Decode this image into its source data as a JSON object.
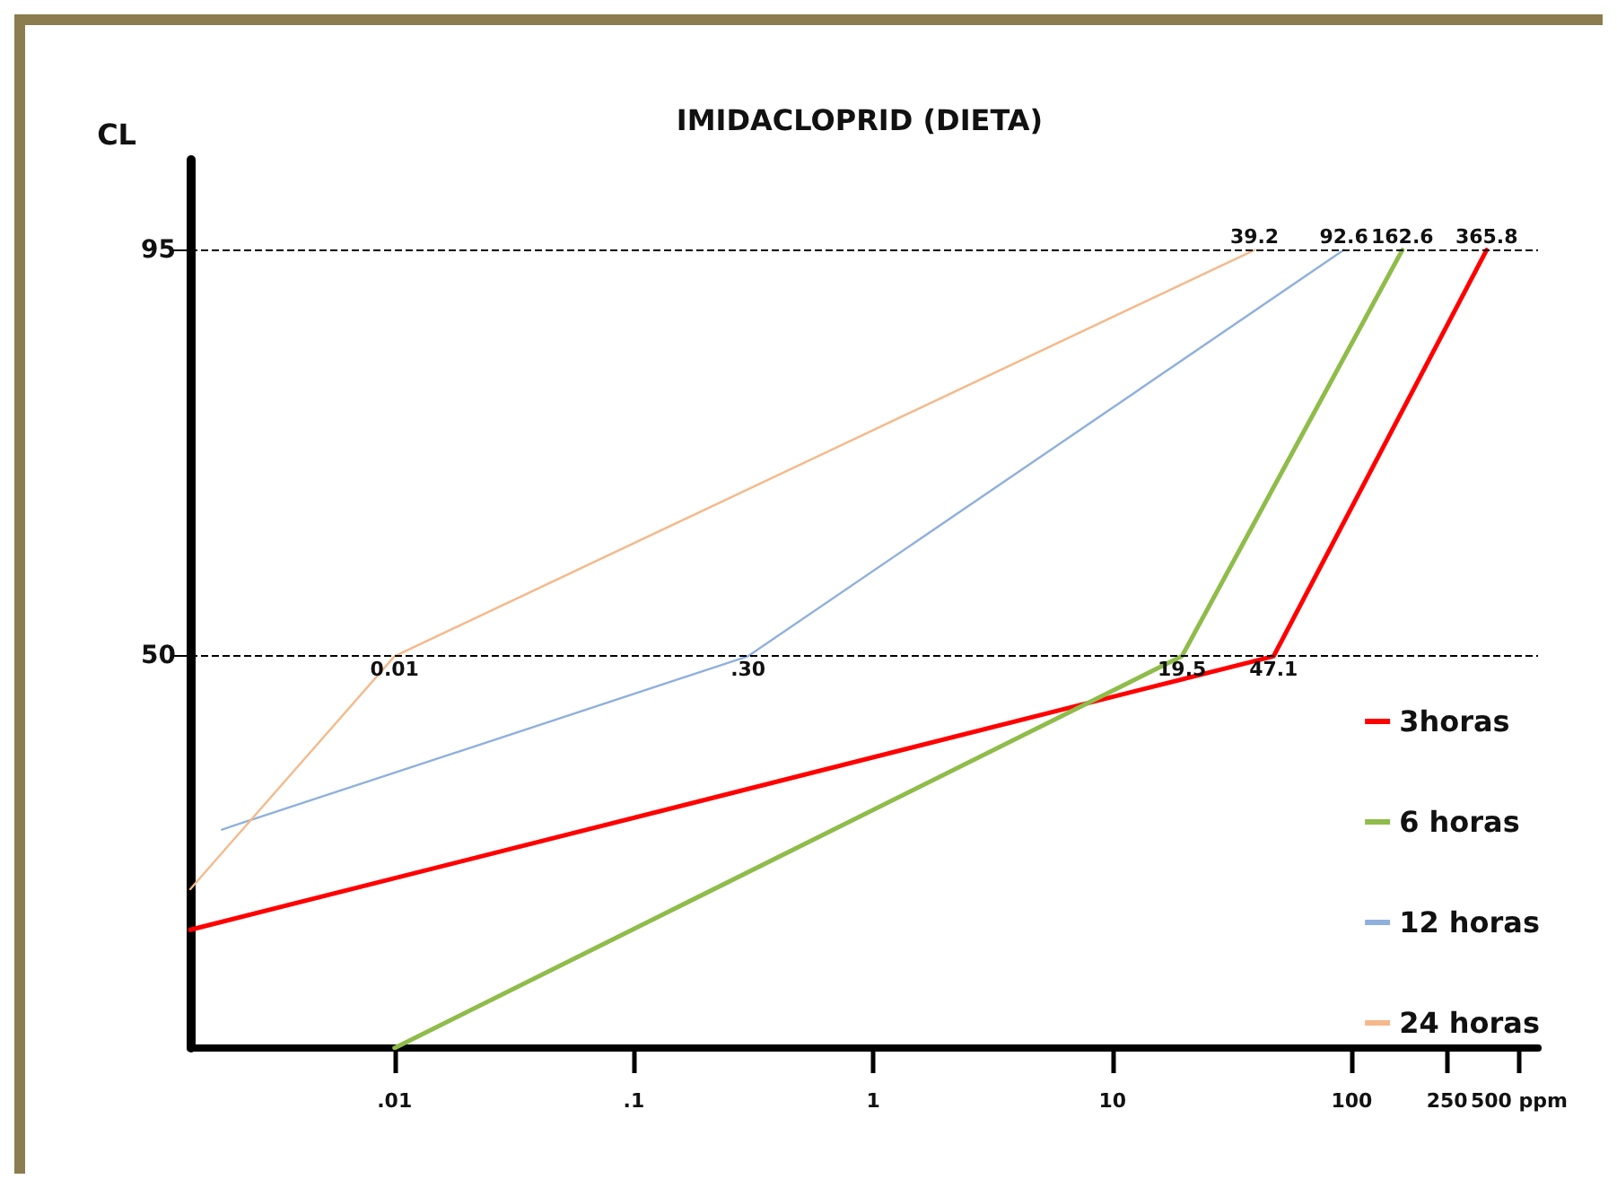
{
  "chart_data": {
    "type": "line",
    "title": "IMIDACLOPRID (DIETA)",
    "ylabel": "CL",
    "log": "x",
    "xlim": [
      0.0014,
      600
    ],
    "xticks": [
      {
        "value": 0.01,
        "label": ".01"
      },
      {
        "value": 0.1,
        "label": ".1"
      },
      1,
      10,
      100,
      250,
      {
        "value": 500,
        "label": "500 ppm"
      }
    ],
    "ylim": [
      6.6,
      105
    ],
    "yticks": [
      50,
      95
    ],
    "series": [
      {
        "name": "3horas",
        "color": "#ff0000",
        "x": [
          0.0014,
          47.1,
          365.8
        ],
        "values": [
          19.7,
          50,
          95
        ]
      },
      {
        "name": "6 horas",
        "color": "#8fbc4a",
        "x": [
          0.01,
          19.5,
          162.6
        ],
        "values": [
          6.6,
          50,
          95
        ]
      },
      {
        "name": "12 horas",
        "color": "#8fb0dc",
        "x": [
          0.0019,
          0.3,
          92.6
        ],
        "values": [
          30.8,
          50,
          95
        ]
      },
      {
        "name": "24 horas",
        "color": "#f5b98a",
        "x": [
          0.0014,
          0.01,
          39.2
        ],
        "values": [
          24.2,
          50,
          95
        ]
      }
    ],
    "ref_lines": [
      {
        "axis": "y",
        "value": 95,
        "line_style": "dashed",
        "color": "#000000"
      },
      {
        "axis": "y",
        "value": 50,
        "line_style": "dashed",
        "color": "#000000"
      }
    ],
    "annotations": [
      {
        "text": "39.2",
        "x": 39.2,
        "y": 95
      },
      {
        "text": "92.6",
        "x": 92.6,
        "y": 95
      },
      {
        "text": "162.6",
        "x": 162.6,
        "y": 95
      },
      {
        "text": "365.8",
        "x": 365.8,
        "y": 95
      },
      {
        "text": "0.01",
        "x": 0.01,
        "y": 50
      },
      {
        "text": ".30",
        "x": 0.3,
        "y": 50
      },
      {
        "text": "19.5",
        "x": 19.5,
        "y": 50
      },
      {
        "text": "47.1",
        "x": 47.1,
        "y": 50
      }
    ],
    "legend": "right",
    "grid": false,
    "marker": "none",
    "line_style": "solid"
  }
}
